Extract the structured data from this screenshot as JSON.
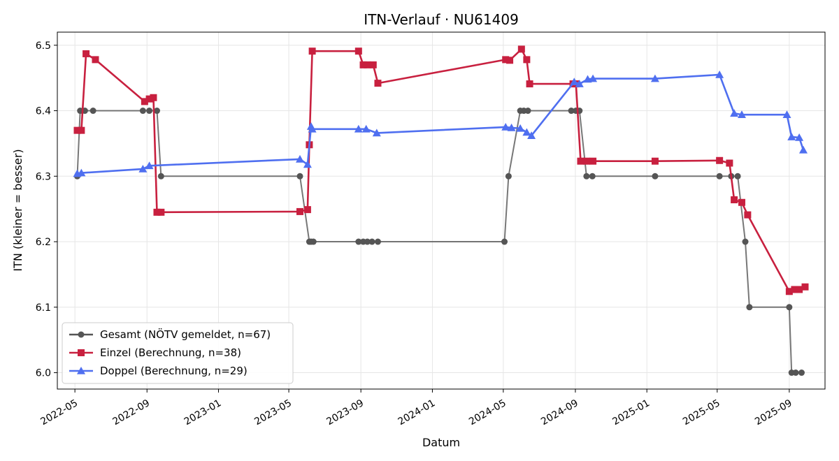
{
  "chart_data": {
    "type": "line",
    "title": "ITN-Verlauf · NU61409",
    "xlabel": "Datum",
    "ylabel": "ITN  (kleiner = besser)",
    "x_axis_type": "date",
    "xlim": [
      "2022-04-01",
      "2025-11-01"
    ],
    "ylim": [
      5.975,
      6.52
    ],
    "x_ticks": [
      "2022-05",
      "2022-09",
      "2023-01",
      "2023-05",
      "2023-09",
      "2024-01",
      "2024-05",
      "2024-09",
      "2025-01",
      "2025-05",
      "2025-09"
    ],
    "y_ticks": [
      "6.0",
      "6.1",
      "6.2",
      "6.3",
      "6.4",
      "6.5"
    ],
    "grid": true,
    "legend_position": "lower-left",
    "series": [
      {
        "name": "Gesamt (NÖTV gemeldet, n=67)",
        "color": "#555555",
        "marker": "circle",
        "points": [
          [
            "2022-05-05",
            6.3
          ],
          [
            "2022-05-10",
            6.4
          ],
          [
            "2022-05-18",
            6.4
          ],
          [
            "2022-06-01",
            6.4
          ],
          [
            "2022-08-25",
            6.4
          ],
          [
            "2022-09-05",
            6.4
          ],
          [
            "2022-09-18",
            6.4
          ],
          [
            "2022-09-25",
            6.3
          ],
          [
            "2023-05-20",
            6.3
          ],
          [
            "2023-06-05",
            6.2
          ],
          [
            "2023-06-08",
            6.2
          ],
          [
            "2023-06-12",
            6.2
          ],
          [
            "2023-08-28",
            6.2
          ],
          [
            "2023-09-05",
            6.2
          ],
          [
            "2023-09-12",
            6.2
          ],
          [
            "2023-09-20",
            6.2
          ],
          [
            "2023-09-30",
            6.2
          ],
          [
            "2024-05-03",
            6.2
          ],
          [
            "2024-05-10",
            6.3
          ],
          [
            "2024-05-30",
            6.4
          ],
          [
            "2024-06-05",
            6.4
          ],
          [
            "2024-06-12",
            6.4
          ],
          [
            "2024-08-25",
            6.4
          ],
          [
            "2024-09-02",
            6.4
          ],
          [
            "2024-09-08",
            6.4
          ],
          [
            "2024-09-20",
            6.3
          ],
          [
            "2024-09-30",
            6.3
          ],
          [
            "2025-01-15",
            6.3
          ],
          [
            "2025-05-05",
            6.3
          ],
          [
            "2025-05-25",
            6.3
          ],
          [
            "2025-06-05",
            6.3
          ],
          [
            "2025-06-18",
            6.2
          ],
          [
            "2025-06-25",
            6.1
          ],
          [
            "2025-09-01",
            6.1
          ],
          [
            "2025-09-05",
            6.0
          ],
          [
            "2025-09-12",
            6.0
          ],
          [
            "2025-09-22",
            6.0
          ]
        ]
      },
      {
        "name": "Einzel (Berechnung, n=38)",
        "color": "#c8203f",
        "marker": "square",
        "points": [
          [
            "2022-05-05",
            6.37
          ],
          [
            "2022-05-12",
            6.37
          ],
          [
            "2022-05-20",
            6.487
          ],
          [
            "2022-06-05",
            6.478
          ],
          [
            "2022-08-28",
            6.414
          ],
          [
            "2022-09-05",
            6.418
          ],
          [
            "2022-09-12",
            6.42
          ],
          [
            "2022-09-18",
            6.245
          ],
          [
            "2022-09-25",
            6.245
          ],
          [
            "2023-05-20",
            6.246
          ],
          [
            "2023-06-02",
            6.249
          ],
          [
            "2023-06-05",
            6.348
          ],
          [
            "2023-06-10",
            6.491
          ],
          [
            "2023-08-28",
            6.491
          ],
          [
            "2023-09-05",
            6.47
          ],
          [
            "2023-09-12",
            6.47
          ],
          [
            "2023-09-22",
            6.47
          ],
          [
            "2023-09-30",
            6.442
          ],
          [
            "2024-05-05",
            6.478
          ],
          [
            "2024-05-12",
            6.477
          ],
          [
            "2024-06-01",
            6.494
          ],
          [
            "2024-06-10",
            6.478
          ],
          [
            "2024-06-15",
            6.441
          ],
          [
            "2024-08-28",
            6.441
          ],
          [
            "2024-09-02",
            6.441
          ],
          [
            "2024-09-10",
            6.323
          ],
          [
            "2024-09-20",
            6.323
          ],
          [
            "2024-10-01",
            6.323
          ],
          [
            "2025-01-15",
            6.323
          ],
          [
            "2025-05-05",
            6.324
          ],
          [
            "2025-05-22",
            6.32
          ],
          [
            "2025-05-30",
            6.264
          ],
          [
            "2025-06-12",
            6.26
          ],
          [
            "2025-06-22",
            6.241
          ],
          [
            "2025-09-01",
            6.124
          ],
          [
            "2025-09-10",
            6.127
          ],
          [
            "2025-09-18",
            6.127
          ],
          [
            "2025-09-28",
            6.131
          ]
        ]
      },
      {
        "name": "Doppel (Berechnung, n=29)",
        "color": "#4f6ff0",
        "marker": "triangle",
        "points": [
          [
            "2022-05-05",
            6.304
          ],
          [
            "2022-05-12",
            6.305
          ],
          [
            "2022-08-25",
            6.311
          ],
          [
            "2022-09-05",
            6.316
          ],
          [
            "2023-05-20",
            6.326
          ],
          [
            "2023-06-02",
            6.318
          ],
          [
            "2023-06-08",
            6.376
          ],
          [
            "2023-06-10",
            6.372
          ],
          [
            "2023-08-28",
            6.372
          ],
          [
            "2023-09-10",
            6.372
          ],
          [
            "2023-09-28",
            6.366
          ],
          [
            "2024-05-05",
            6.375
          ],
          [
            "2024-05-15",
            6.374
          ],
          [
            "2024-05-30",
            6.373
          ],
          [
            "2024-06-10",
            6.367
          ],
          [
            "2024-06-18",
            6.362
          ],
          [
            "2024-08-30",
            6.444
          ],
          [
            "2024-09-08",
            6.441
          ],
          [
            "2024-09-22",
            6.448
          ],
          [
            "2024-10-01",
            6.449
          ],
          [
            "2025-01-15",
            6.449
          ],
          [
            "2025-05-05",
            6.455
          ],
          [
            "2025-05-30",
            6.396
          ],
          [
            "2025-06-12",
            6.394
          ],
          [
            "2025-08-28",
            6.394
          ],
          [
            "2025-09-05",
            6.36
          ],
          [
            "2025-09-18",
            6.359
          ],
          [
            "2025-09-25",
            6.34
          ]
        ]
      }
    ]
  }
}
